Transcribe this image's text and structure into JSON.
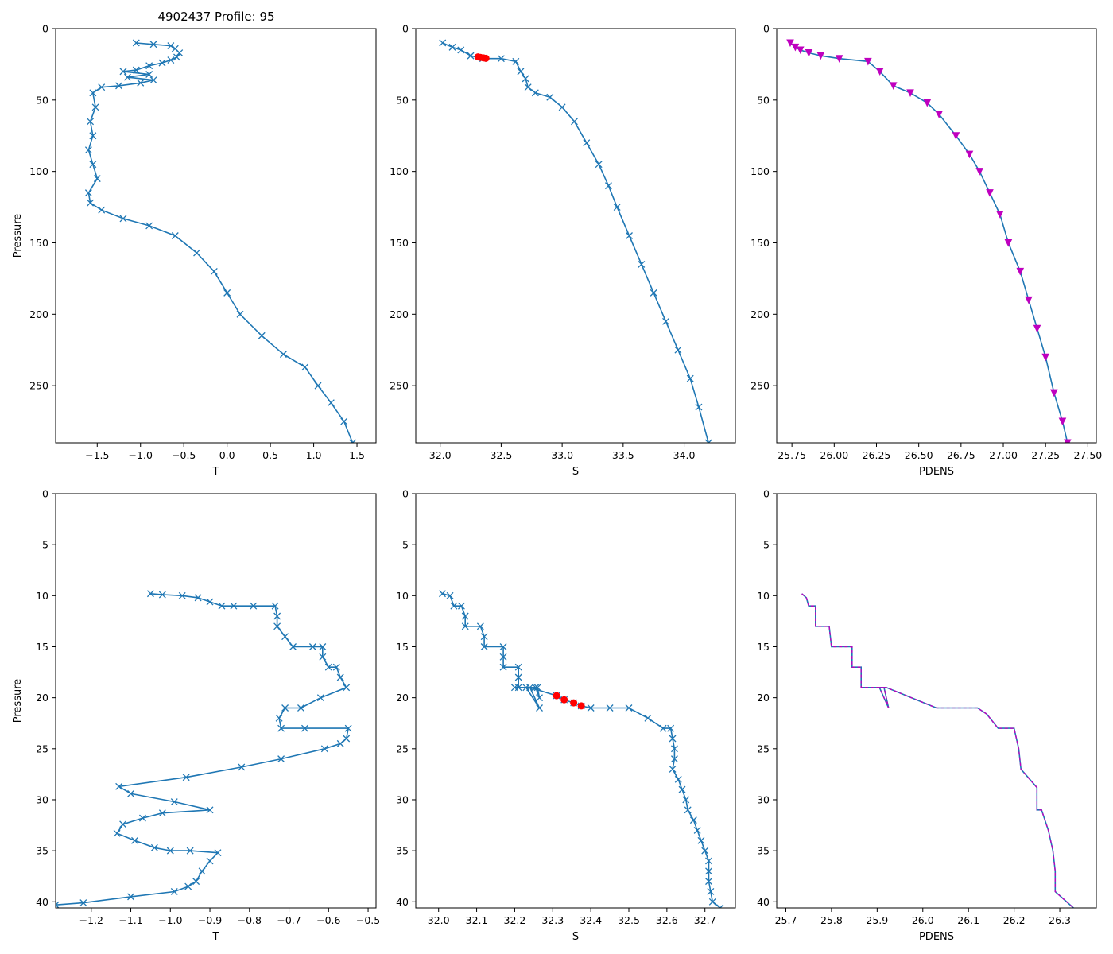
{
  "figure": {
    "title": "4902437 Profile: 95"
  },
  "colors": {
    "series": "#1f77b4",
    "flag": "#ff0000",
    "density": "#bf00bf",
    "axis": "#000000"
  },
  "chart_data": [
    {
      "id": "top-temperature",
      "type": "line",
      "xlabel": "T",
      "ylabel": "Pressure",
      "xlim": [
        -1.98,
        1.72
      ],
      "ylim": [
        290,
        0
      ],
      "marker": "x",
      "xticks": [
        -1.5,
        -1.0,
        -0.5,
        0.0,
        0.5,
        1.0,
        1.5
      ],
      "xtick_labels": [
        "−1.5",
        "−1.0",
        "−0.5",
        "0.0",
        "0.5",
        "1.0",
        "1.5"
      ],
      "yticks": [
        0,
        50,
        100,
        150,
        200,
        250
      ],
      "ytick_labels": [
        "0",
        "50",
        "100",
        "150",
        "200",
        "250"
      ],
      "points": [
        [
          -1.05,
          10
        ],
        [
          -0.85,
          11
        ],
        [
          -0.65,
          12
        ],
        [
          -0.6,
          14
        ],
        [
          -0.55,
          17
        ],
        [
          -0.58,
          20
        ],
        [
          -0.65,
          22
        ],
        [
          -0.75,
          24
        ],
        [
          -0.9,
          26
        ],
        [
          -1.05,
          29
        ],
        [
          -1.2,
          30
        ],
        [
          -0.9,
          32
        ],
        [
          -1.15,
          34
        ],
        [
          -0.85,
          36
        ],
        [
          -1.0,
          38
        ],
        [
          -1.25,
          40
        ],
        [
          -1.45,
          41
        ],
        [
          -1.55,
          45
        ],
        [
          -1.52,
          55
        ],
        [
          -1.58,
          65
        ],
        [
          -1.55,
          75
        ],
        [
          -1.6,
          85
        ],
        [
          -1.55,
          95
        ],
        [
          -1.5,
          105
        ],
        [
          -1.6,
          115
        ],
        [
          -1.58,
          122
        ],
        [
          -1.45,
          127
        ],
        [
          -1.2,
          133
        ],
        [
          -0.9,
          138
        ],
        [
          -0.6,
          145
        ],
        [
          -0.35,
          157
        ],
        [
          -0.15,
          170
        ],
        [
          0.0,
          185
        ],
        [
          0.15,
          200
        ],
        [
          0.4,
          215
        ],
        [
          0.65,
          228
        ],
        [
          0.9,
          237
        ],
        [
          1.05,
          250
        ],
        [
          1.2,
          262
        ],
        [
          1.35,
          275
        ],
        [
          1.45,
          290
        ]
      ]
    },
    {
      "id": "top-salinity",
      "type": "line",
      "xlabel": "S",
      "ylabel": "",
      "xlim": [
        31.8,
        34.42
      ],
      "ylim": [
        290,
        0
      ],
      "marker": "x",
      "xticks": [
        32.0,
        32.5,
        33.0,
        33.5,
        34.0
      ],
      "xtick_labels": [
        "32.0",
        "32.5",
        "33.0",
        "33.5",
        "34.0"
      ],
      "yticks": [
        0,
        50,
        100,
        150,
        200,
        250
      ],
      "ytick_labels": [
        "0",
        "50",
        "100",
        "150",
        "200",
        "250"
      ],
      "points": [
        [
          32.02,
          10
        ],
        [
          32.1,
          13
        ],
        [
          32.17,
          15
        ],
        [
          32.25,
          19
        ],
        [
          32.35,
          21
        ],
        [
          32.5,
          21
        ],
        [
          32.62,
          23
        ],
        [
          32.66,
          30
        ],
        [
          32.7,
          35
        ],
        [
          32.72,
          41
        ],
        [
          32.78,
          45
        ],
        [
          32.9,
          48
        ],
        [
          33.0,
          55
        ],
        [
          33.1,
          65
        ],
        [
          33.2,
          80
        ],
        [
          33.3,
          95
        ],
        [
          33.38,
          110
        ],
        [
          33.45,
          125
        ],
        [
          33.55,
          145
        ],
        [
          33.65,
          165
        ],
        [
          33.75,
          185
        ],
        [
          33.85,
          205
        ],
        [
          33.95,
          225
        ],
        [
          34.05,
          245
        ],
        [
          34.12,
          265
        ],
        [
          34.2,
          290
        ]
      ],
      "flagged_points": [
        [
          32.31,
          19.8
        ],
        [
          32.33,
          20.2
        ],
        [
          32.355,
          20.5
        ],
        [
          32.375,
          20.8
        ]
      ]
    },
    {
      "id": "top-density",
      "type": "line",
      "xlabel": "PDENS",
      "ylabel": "",
      "xlim": [
        25.66,
        27.55
      ],
      "ylim": [
        290,
        0
      ],
      "marker": "triangle",
      "xticks": [
        25.75,
        26.0,
        26.25,
        26.5,
        26.75,
        27.0,
        27.25,
        27.5
      ],
      "xtick_labels": [
        "25.75",
        "26.00",
        "26.25",
        "26.50",
        "26.75",
        "27.00",
        "27.25",
        "27.50"
      ],
      "yticks": [
        0,
        50,
        100,
        150,
        200,
        250
      ],
      "ytick_labels": [
        "0",
        "50",
        "100",
        "150",
        "200",
        "250"
      ],
      "points": [
        [
          25.74,
          10
        ],
        [
          25.77,
          13
        ],
        [
          25.8,
          15
        ],
        [
          25.85,
          17
        ],
        [
          25.92,
          19
        ],
        [
          26.03,
          21
        ],
        [
          26.2,
          23
        ],
        [
          26.27,
          30
        ],
        [
          26.35,
          40
        ],
        [
          26.45,
          45
        ],
        [
          26.55,
          52
        ],
        [
          26.62,
          60
        ],
        [
          26.72,
          75
        ],
        [
          26.8,
          88
        ],
        [
          26.86,
          100
        ],
        [
          26.92,
          115
        ],
        [
          26.98,
          130
        ],
        [
          27.03,
          150
        ],
        [
          27.1,
          170
        ],
        [
          27.15,
          190
        ],
        [
          27.2,
          210
        ],
        [
          27.25,
          230
        ],
        [
          27.3,
          255
        ],
        [
          27.35,
          275
        ],
        [
          27.38,
          290
        ]
      ]
    },
    {
      "id": "bottom-temperature",
      "type": "line",
      "xlabel": "T",
      "ylabel": "Pressure",
      "xlim": [
        -1.29,
        -0.48
      ],
      "ylim": [
        40.6,
        0
      ],
      "marker": "x",
      "xticks": [
        -1.2,
        -1.1,
        -1.0,
        -0.9,
        -0.8,
        -0.7,
        -0.6,
        -0.5
      ],
      "xtick_labels": [
        "−1.2",
        "−1.1",
        "−1.0",
        "−0.9",
        "−0.8",
        "−0.7",
        "−0.6",
        "−0.5"
      ],
      "yticks": [
        0,
        5,
        10,
        15,
        20,
        25,
        30,
        35,
        40
      ],
      "ytick_labels": [
        "0",
        "5",
        "10",
        "15",
        "20",
        "25",
        "30",
        "35",
        "40"
      ],
      "points": [
        [
          -1.05,
          9.8
        ],
        [
          -1.02,
          9.9
        ],
        [
          -0.97,
          10.0
        ],
        [
          -0.93,
          10.2
        ],
        [
          -0.9,
          10.6
        ],
        [
          -0.87,
          11.0
        ],
        [
          -0.84,
          11.0
        ],
        [
          -0.79,
          11.0
        ],
        [
          -0.735,
          11.0
        ],
        [
          -0.73,
          12.0
        ],
        [
          -0.73,
          13.0
        ],
        [
          -0.71,
          14.0
        ],
        [
          -0.69,
          15.0
        ],
        [
          -0.64,
          15.0
        ],
        [
          -0.615,
          15.0
        ],
        [
          -0.615,
          16.0
        ],
        [
          -0.6,
          17.0
        ],
        [
          -0.58,
          17.0
        ],
        [
          -0.57,
          18.0
        ],
        [
          -0.555,
          19.0
        ],
        [
          -0.62,
          20.0
        ],
        [
          -0.67,
          21.0
        ],
        [
          -0.71,
          21.0
        ],
        [
          -0.725,
          22.0
        ],
        [
          -0.72,
          23.0
        ],
        [
          -0.66,
          23.0
        ],
        [
          -0.55,
          23.0
        ],
        [
          -0.555,
          24.0
        ],
        [
          -0.57,
          24.5
        ],
        [
          -0.61,
          25.0
        ],
        [
          -0.72,
          26.0
        ],
        [
          -0.82,
          26.8
        ],
        [
          -0.96,
          27.8
        ],
        [
          -1.13,
          28.7
        ],
        [
          -1.1,
          29.4
        ],
        [
          -0.99,
          30.2
        ],
        [
          -0.9,
          31.0
        ],
        [
          -1.02,
          31.3
        ],
        [
          -1.07,
          31.8
        ],
        [
          -1.12,
          32.4
        ],
        [
          -1.135,
          33.3
        ],
        [
          -1.09,
          34.0
        ],
        [
          -1.04,
          34.7
        ],
        [
          -1.0,
          35.0
        ],
        [
          -0.95,
          35.0
        ],
        [
          -0.88,
          35.2
        ],
        [
          -0.9,
          36.0
        ],
        [
          -0.92,
          37.0
        ],
        [
          -0.935,
          38.0
        ],
        [
          -0.955,
          38.5
        ],
        [
          -0.99,
          39.0
        ],
        [
          -1.1,
          39.5
        ],
        [
          -1.22,
          40.1
        ],
        [
          -1.29,
          40.3
        ]
      ]
    },
    {
      "id": "bottom-salinity",
      "type": "line",
      "xlabel": "S",
      "ylabel": "",
      "xlim": [
        31.94,
        32.78
      ],
      "ylim": [
        40.6,
        0
      ],
      "marker": "x",
      "xticks": [
        32.0,
        32.1,
        32.2,
        32.3,
        32.4,
        32.5,
        32.6,
        32.7
      ],
      "xtick_labels": [
        "32.0",
        "32.1",
        "32.2",
        "32.3",
        "32.4",
        "32.5",
        "32.6",
        "32.7"
      ],
      "yticks": [
        0,
        5,
        10,
        15,
        20,
        25,
        30,
        35,
        40
      ],
      "ytick_labels": [
        "0",
        "5",
        "10",
        "15",
        "20",
        "25",
        "30",
        "35",
        "40"
      ],
      "points": [
        [
          32.01,
          9.8
        ],
        [
          32.03,
          10.0
        ],
        [
          32.04,
          11.0
        ],
        [
          32.06,
          11.0
        ],
        [
          32.07,
          12.0
        ],
        [
          32.07,
          13.0
        ],
        [
          32.11,
          13.0
        ],
        [
          32.12,
          14.0
        ],
        [
          32.12,
          15.0
        ],
        [
          32.17,
          15.0
        ],
        [
          32.17,
          16.0
        ],
        [
          32.17,
          17.0
        ],
        [
          32.21,
          17.0
        ],
        [
          32.21,
          18.0
        ],
        [
          32.21,
          19.0
        ],
        [
          32.26,
          19.0
        ],
        [
          32.265,
          20.0
        ],
        [
          32.255,
          19.0
        ],
        [
          32.2,
          19.0
        ],
        [
          32.23,
          19.0
        ],
        [
          32.265,
          21.0
        ],
        [
          32.24,
          19.0
        ],
        [
          32.31,
          19.8
        ],
        [
          32.33,
          20.2
        ],
        [
          32.355,
          20.5
        ],
        [
          32.375,
          20.8
        ],
        [
          32.4,
          21.0
        ],
        [
          32.45,
          21.0
        ],
        [
          32.5,
          21.0
        ],
        [
          32.55,
          22.0
        ],
        [
          32.59,
          23.0
        ],
        [
          32.61,
          23.0
        ],
        [
          32.615,
          24.0
        ],
        [
          32.62,
          25.0
        ],
        [
          32.62,
          26.0
        ],
        [
          32.615,
          27.0
        ],
        [
          32.63,
          28.0
        ],
        [
          32.64,
          29.0
        ],
        [
          32.65,
          30.0
        ],
        [
          32.655,
          31.0
        ],
        [
          32.67,
          32.0
        ],
        [
          32.68,
          33.0
        ],
        [
          32.69,
          34.0
        ],
        [
          32.7,
          35.0
        ],
        [
          32.71,
          36.0
        ],
        [
          32.71,
          37.0
        ],
        [
          32.71,
          38.0
        ],
        [
          32.715,
          39.0
        ],
        [
          32.72,
          40.0
        ],
        [
          32.74,
          40.6
        ]
      ],
      "flagged_points": [
        [
          32.31,
          19.8
        ],
        [
          32.33,
          20.2
        ],
        [
          32.355,
          20.5
        ],
        [
          32.375,
          20.8
        ]
      ]
    },
    {
      "id": "bottom-density",
      "type": "line",
      "xlabel": "PDENS",
      "ylabel": "",
      "xlim": [
        25.68,
        26.38
      ],
      "ylim": [
        40.6,
        0
      ],
      "marker": "none",
      "xticks": [
        25.7,
        25.8,
        25.9,
        26.0,
        26.1,
        26.2,
        26.3
      ],
      "xtick_labels": [
        "25.7",
        "25.8",
        "25.9",
        "26.0",
        "26.1",
        "26.2",
        "26.3"
      ],
      "yticks": [
        0,
        5,
        10,
        15,
        20,
        25,
        30,
        35,
        40
      ],
      "ytick_labels": [
        "0",
        "5",
        "10",
        "15",
        "20",
        "25",
        "30",
        "35",
        "40"
      ],
      "points": [
        [
          25.735,
          9.8
        ],
        [
          25.745,
          10.2
        ],
        [
          25.75,
          11.0
        ],
        [
          25.765,
          11.0
        ],
        [
          25.765,
          13.0
        ],
        [
          25.795,
          13.0
        ],
        [
          25.8,
          15.0
        ],
        [
          25.845,
          15.0
        ],
        [
          25.845,
          17.0
        ],
        [
          25.865,
          17.0
        ],
        [
          25.865,
          19.0
        ],
        [
          25.915,
          19.0
        ],
        [
          25.925,
          21.0
        ],
        [
          25.905,
          19.0
        ],
        [
          25.92,
          19.0
        ],
        [
          26.03,
          21.0
        ],
        [
          26.12,
          21.0
        ],
        [
          26.14,
          21.6
        ],
        [
          26.165,
          23.0
        ],
        [
          26.2,
          23.0
        ],
        [
          26.21,
          25.0
        ],
        [
          26.215,
          27.0
        ],
        [
          26.25,
          28.8
        ],
        [
          26.25,
          31.0
        ],
        [
          26.26,
          31.0
        ],
        [
          26.275,
          33.0
        ],
        [
          26.285,
          35.0
        ],
        [
          26.29,
          37.0
        ],
        [
          26.29,
          39.0
        ],
        [
          26.33,
          40.6
        ]
      ]
    }
  ]
}
